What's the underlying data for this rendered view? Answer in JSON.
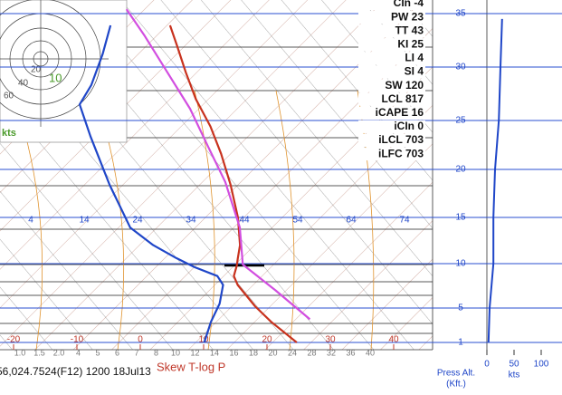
{
  "chart_data": {
    "type": "skewt",
    "title": "Skew T-log P",
    "caption": "56,024.7524(F12) 1200 18Jul13",
    "ylabel": [
      "Press Alt.",
      "(Kft.)"
    ],
    "ylim": [
      0,
      36
    ],
    "yticks": [
      1,
      5,
      10,
      15,
      20,
      25,
      30,
      35
    ],
    "xticks": [
      -20,
      -10,
      0,
      10,
      20,
      30,
      40
    ],
    "isotherm_labels": [
      4,
      14,
      24,
      34,
      44,
      54,
      64,
      74
    ],
    "mixing_ratio_labels": [
      "1.0",
      "1.5",
      "2.0",
      "4",
      "5",
      "6",
      "7",
      "8",
      "10",
      "12",
      "14",
      "16",
      "18",
      "20",
      "24",
      "28",
      "32",
      "36",
      "40"
    ],
    "indices": [
      "CIn -4",
      "PW 23",
      "TT 43",
      "KI 25",
      "LI 4",
      "SI 4",
      "SW 120",
      "LCL 817",
      "iCAPE 16",
      "iCIn 0",
      "iLCL 703",
      "iLFC 703"
    ],
    "series": [
      {
        "color": "#c8321e",
        "x": [
          24.7,
          17.4,
          12.4,
          6.3,
          4.3,
          3.1,
          2.1,
          0.4,
          -4.3,
          -10.6,
          -17,
          -23,
          -29.6,
          -35.4,
          -41,
          -45.3
        ],
        "values": [
          1,
          3.4,
          5.2,
          7.6,
          8.6,
          9.8,
          10.6,
          12,
          15,
          18.4,
          21.6,
          24.4,
          27,
          29.5,
          32,
          33.9
        ]
      },
      {
        "color": "#1f46c8",
        "x": [
          10.1,
          7.9,
          6.4,
          4,
          1.7,
          -3.3,
          -7.6,
          -13.3,
          -19.7,
          -29.7,
          -40.4,
          -47.1,
          -48.3,
          -51.4,
          -54.7
        ],
        "values": [
          1,
          3.4,
          5.5,
          7.6,
          8.6,
          9.6,
          10.6,
          12,
          13.9,
          18.4,
          23.4,
          26.5,
          28.3,
          31.2,
          33.9
        ]
      },
      {
        "color": "#d24ee0",
        "x": [
          23.1,
          13.1,
          3.9,
          -2.4,
          -11.9,
          -20.1,
          -29,
          -38.3,
          -47.6,
          -54.7
        ],
        "values": [
          3.7,
          7,
          9.9,
          13.9,
          18.7,
          22.3,
          26.1,
          29.5,
          32.9,
          35.4
        ]
      }
    ],
    "wind": {
      "xlabel": "kts",
      "xticks": [
        0,
        50,
        100
      ],
      "color": "#1f46c8",
      "speeds": [
        3,
        5,
        12,
        12,
        15,
        22,
        25,
        28
      ],
      "altitudes": [
        1,
        5,
        10,
        15,
        20,
        25,
        30,
        34.5
      ]
    },
    "hodograph": {
      "rings": [
        "20",
        "40",
        "60"
      ],
      "unit": "kts",
      "label": "10"
    }
  }
}
